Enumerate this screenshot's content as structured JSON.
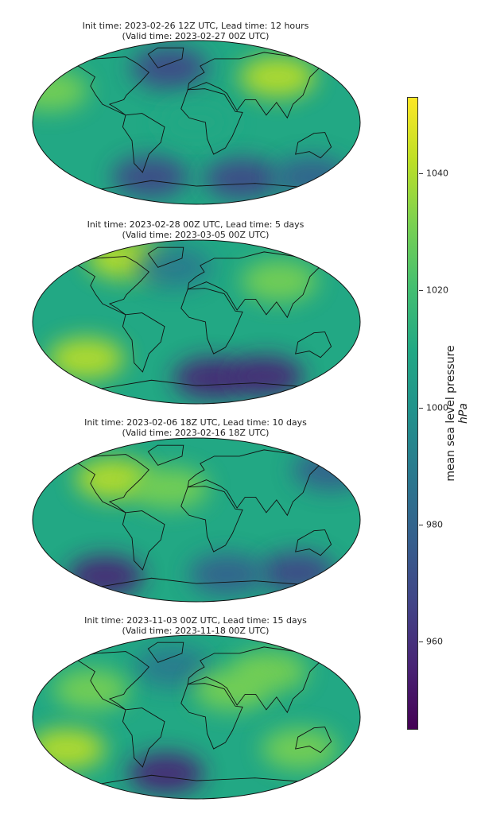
{
  "chart_data": {
    "type": "heatmap",
    "variable": "mean sea level pressure",
    "units": "hPa",
    "colormap": "viridis",
    "colorbar": {
      "label": "mean sea level pressure",
      "units_label": "hPa",
      "ticks": [
        960,
        980,
        1000,
        1020,
        1040
      ],
      "range": [
        945,
        1053
      ]
    },
    "panels": [
      {
        "title": "Init time: 2023-02-26 12Z UTC, Lead time: 12 hours",
        "subtitle": "(Valid time: 2023-02-27 00Z UTC)",
        "features": [
          {
            "lon": 100,
            "lat": 50,
            "p": 1040
          },
          {
            "lon": -170,
            "lat": 35,
            "p": 1032
          },
          {
            "lon": -35,
            "lat": 60,
            "p": 965
          },
          {
            "lon": -60,
            "lat": -60,
            "p": 968
          },
          {
            "lon": 60,
            "lat": -62,
            "p": 970
          },
          {
            "lon": 150,
            "lat": -60,
            "p": 975
          },
          {
            "lon": 0,
            "lat": 0,
            "p": 1010
          }
        ]
      },
      {
        "title": "Init time: 2023-02-28 00Z UTC, Lead time: 5 days",
        "subtitle": "(Valid time: 2023-03-05 00Z UTC)",
        "features": [
          {
            "lon": -100,
            "lat": 70,
            "p": 1042
          },
          {
            "lon": -130,
            "lat": -40,
            "p": 1040
          },
          {
            "lon": 20,
            "lat": -62,
            "p": 958
          },
          {
            "lon": 90,
            "lat": -60,
            "p": 960
          },
          {
            "lon": -30,
            "lat": 60,
            "p": 985
          },
          {
            "lon": 100,
            "lat": 45,
            "p": 1030
          }
        ]
      },
      {
        "title": "Init time: 2023-02-06 18Z UTC, Lead time: 10 days",
        "subtitle": "(Valid time: 2023-02-16 18Z UTC)",
        "features": [
          {
            "lon": -100,
            "lat": 45,
            "p": 1038
          },
          {
            "lon": -120,
            "lat": -62,
            "p": 960
          },
          {
            "lon": 130,
            "lat": -58,
            "p": 965
          },
          {
            "lon": 40,
            "lat": -60,
            "p": 972
          },
          {
            "lon": 170,
            "lat": 55,
            "p": 980
          },
          {
            "lon": -30,
            "lat": 35,
            "p": 1030
          }
        ]
      },
      {
        "title": "Init time: 2023-11-03 00Z UTC, Lead time: 15 days",
        "subtitle": "(Valid time: 2023-11-18 00Z UTC)",
        "features": [
          {
            "lon": -150,
            "lat": -35,
            "p": 1045
          },
          {
            "lon": 120,
            "lat": -35,
            "p": 1035
          },
          {
            "lon": 90,
            "lat": 50,
            "p": 1035
          },
          {
            "lon": -40,
            "lat": -62,
            "p": 958
          },
          {
            "lon": -30,
            "lat": 55,
            "p": 985
          },
          {
            "lon": -120,
            "lat": 30,
            "p": 1030
          },
          {
            "lon": 40,
            "lat": 30,
            "p": 1028
          }
        ]
      }
    ]
  }
}
